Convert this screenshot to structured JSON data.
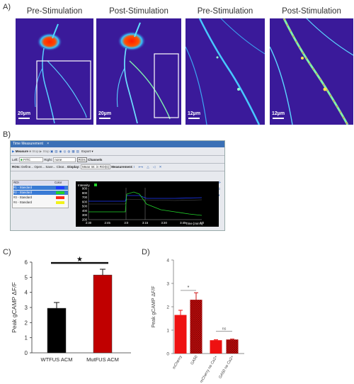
{
  "panel_a": {
    "letter": "A)",
    "titles": [
      "Pre-Stimulation",
      "Post-Stimulation",
      "Pre-Stimulation",
      "Post-Stimulation"
    ],
    "scalebars": [
      "20µm",
      "20µm",
      "12µm",
      "12µm"
    ]
  },
  "panel_b": {
    "letter": "B)",
    "window_title": "Time Measurement",
    "toolbar": {
      "measure": "Measure",
      "stop1": "Stop",
      "stop2": "Stop",
      "export": "Export",
      "left_label": "Left:",
      "left_value": "FITC",
      "right_label": "Right:",
      "right_value": "none",
      "rois_btn": "ROIs",
      "channels_btn": "Channels"
    },
    "rois_row": {
      "label": "ROIs:",
      "define": "Define...",
      "open": "Open...",
      "save": "Save...",
      "clear": "Clear...",
      "display_label": "Display:",
      "display_value": "Mean Int. in ROI(s)",
      "measurement_label": "Measurement:"
    },
    "roi_table": {
      "col_roi": "ROI",
      "col_color": "Color",
      "rows": [
        {
          "label": "#1 - Standard",
          "color": "#1f3bff"
        },
        {
          "label": "#2 - Standard",
          "color": "#22d22a"
        },
        {
          "label": "#3 - Standard",
          "color": "#ff2a1a"
        },
        {
          "label": "#4 - Standard",
          "color": "#f2f21a"
        }
      ]
    },
    "plot": {
      "ylabel": "Intensity",
      "yticks": [
        "900",
        "800",
        "700",
        "600",
        "500",
        "400",
        "300",
        "200"
      ],
      "xticks": [
        "2:30",
        "2:45",
        "3:0",
        "3:15",
        "3:30",
        "3:45",
        "4:0"
      ],
      "xlabel": "Time [min:s]"
    }
  },
  "chart_data": [
    {
      "type": "bar",
      "panel": "C)",
      "categories": [
        "WTFUS ACM",
        "MutFUS ACM"
      ],
      "values": [
        2.95,
        5.15
      ],
      "errors": [
        0.38,
        0.38
      ],
      "colors": [
        "#000000",
        "#c00000"
      ],
      "ylabel": "Peak gCAMP ΔF/F",
      "ylim": [
        0,
        6
      ],
      "yticks": [
        "0",
        "1",
        "2",
        "3",
        "4",
        "5",
        "6"
      ],
      "annotation": "★"
    },
    {
      "type": "bar",
      "panel": "D)",
      "categories": [
        "mCherry",
        "GA50",
        "mCherry no Ca2+",
        "GA50 no Ca2+"
      ],
      "values": [
        1.65,
        2.3,
        0.57,
        0.6
      ],
      "errors": [
        0.2,
        0.3,
        0.02,
        0.02
      ],
      "colors": [
        "#ee1111",
        "#cc1111",
        "#ee1111",
        "#cc1111"
      ],
      "ylabel": "Peak gCAMP ΔF/F",
      "ylim": [
        0,
        4
      ],
      "yticks": [
        "0",
        "1",
        "2",
        "3",
        "4"
      ],
      "sig_label": "*",
      "ns_label": "ns"
    }
  ]
}
